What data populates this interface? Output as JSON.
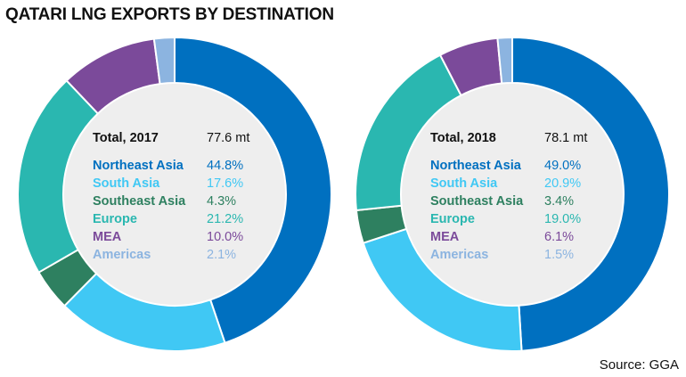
{
  "title": "QATARI LNG EXPORTS BY DESTINATION",
  "source": "Source: GGA",
  "colors": {
    "Northeast Asia": "#0070C0",
    "South Asia": "#40C8F4",
    "Southeast Asia": "#2E8060",
    "Europe": "#2AB7B0",
    "MEA": "#7B4A9A",
    "Americas": "#8CB4E0",
    "center": "#EEEEEE"
  },
  "chart_data": [
    {
      "type": "pie",
      "title": "Total, 2017",
      "total": "77.6 mt",
      "categories": [
        "Northeast Asia",
        "South Asia",
        "Southeast Asia",
        "Europe",
        "MEA",
        "Americas"
      ],
      "values": [
        44.8,
        17.6,
        4.3,
        21.2,
        10.0,
        2.1
      ],
      "labels": [
        "44.8%",
        "17.6%",
        "4.3%",
        "21.2%",
        "10.0%",
        "2.1%"
      ]
    },
    {
      "type": "pie",
      "title": "Total, 2018",
      "total": "78.1 mt",
      "categories": [
        "Northeast Asia",
        "South Asia",
        "Southeast Asia",
        "Europe",
        "MEA",
        "Americas"
      ],
      "values": [
        49.0,
        20.9,
        3.4,
        19.0,
        6.1,
        1.5
      ],
      "labels": [
        "49.0%",
        "20.9%",
        "3.4%",
        "19.0%",
        "6.1%",
        "1.5%"
      ]
    }
  ]
}
